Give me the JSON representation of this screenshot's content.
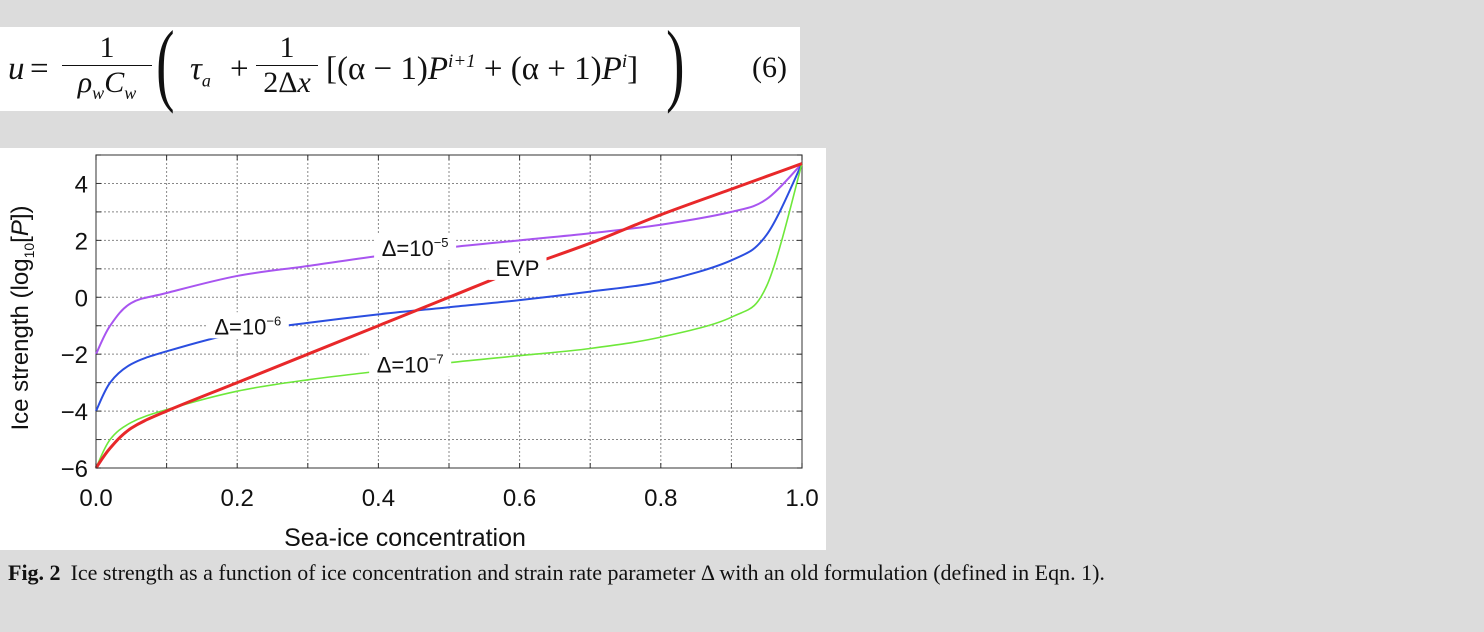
{
  "equation": {
    "lhs": "u",
    "equals": "=",
    "frac1_num": "1",
    "frac1_den_rho": "ρ",
    "frac1_den_sub1": "w",
    "frac1_den_C": "C",
    "frac1_den_sub2": "w",
    "lparen": "(",
    "tau": "τ",
    "tau_sub": "a",
    "plus1": "+",
    "frac2_num": "1",
    "frac2_den": "2Δ",
    "frac2_den_x": "x",
    "bracket_open": "[(α − 1)",
    "P1": "P",
    "P1_sup": "i+1",
    "mid": "+ (α + 1)",
    "P2": "P",
    "P2_sup": "i",
    "bracket_close": "]",
    "rparen": ")",
    "number": "(6)"
  },
  "chart_data": {
    "type": "line",
    "xlabel": "Sea-ice concentration",
    "ylabel_pre": "Ice strength (log",
    "ylabel_sub": "10",
    "ylabel_mid": "[",
    "ylabel_var": "P",
    "ylabel_post": "])",
    "xlim": [
      0,
      1
    ],
    "ylim": [
      -6,
      5
    ],
    "x_ticks": [
      0,
      0.2,
      0.4,
      0.6,
      0.8,
      1.0
    ],
    "x_tick_labels": [
      "0.0",
      "0.2",
      "0.4",
      "0.6",
      "0.8",
      "1.0"
    ],
    "y_ticks": [
      -6,
      -4,
      -2,
      0,
      2,
      4
    ],
    "y_tick_labels": [
      "−6",
      "−4",
      "−2",
      "0",
      "2",
      "4"
    ],
    "grid": "dotted, minor every 0.1 in x and 1 in y",
    "x": [
      0,
      0.02,
      0.05,
      0.1,
      0.2,
      0.3,
      0.4,
      0.5,
      0.6,
      0.7,
      0.8,
      0.9,
      0.95,
      1.0
    ],
    "series": [
      {
        "name": "EVP",
        "label_main": "EVP",
        "label_exp": "",
        "color": "#e8282a",
        "width": 3,
        "values": [
          -6,
          -5.3,
          -4.6,
          -4.0,
          -3.0,
          -2.0,
          -1.0,
          0.0,
          1.0,
          1.9,
          2.9,
          3.8,
          4.25,
          4.7
        ]
      },
      {
        "name": "Δ=10−5",
        "label_main": "Δ=10",
        "label_exp": "−5",
        "color": "#a855f0",
        "width": 2,
        "values": [
          -2,
          -1.0,
          -0.2,
          0.15,
          0.75,
          1.1,
          1.45,
          1.75,
          2.0,
          2.25,
          2.55,
          3.0,
          3.45,
          4.7
        ]
      },
      {
        "name": "Δ=10−6",
        "label_main": "Δ=10",
        "label_exp": "−6",
        "color": "#2b4ee0",
        "width": 2,
        "values": [
          -4,
          -3.0,
          -2.35,
          -1.9,
          -1.25,
          -0.9,
          -0.6,
          -0.35,
          -0.1,
          0.2,
          0.55,
          1.3,
          2.2,
          4.7
        ]
      },
      {
        "name": "Δ=10−7",
        "label_main": "Δ=10",
        "label_exp": "−7",
        "color": "#6ee83a",
        "width": 1.6,
        "values": [
          -6,
          -5.0,
          -4.4,
          -3.95,
          -3.3,
          -2.9,
          -2.6,
          -2.3,
          -2.05,
          -1.8,
          -1.4,
          -0.7,
          0.4,
          4.7
        ]
      }
    ]
  },
  "caption": {
    "label": "Fig. 2",
    "text": "Ice strength as a function of ice concentration and strain rate parameter Δ with an old formulation (defined in Eqn. 1)."
  }
}
